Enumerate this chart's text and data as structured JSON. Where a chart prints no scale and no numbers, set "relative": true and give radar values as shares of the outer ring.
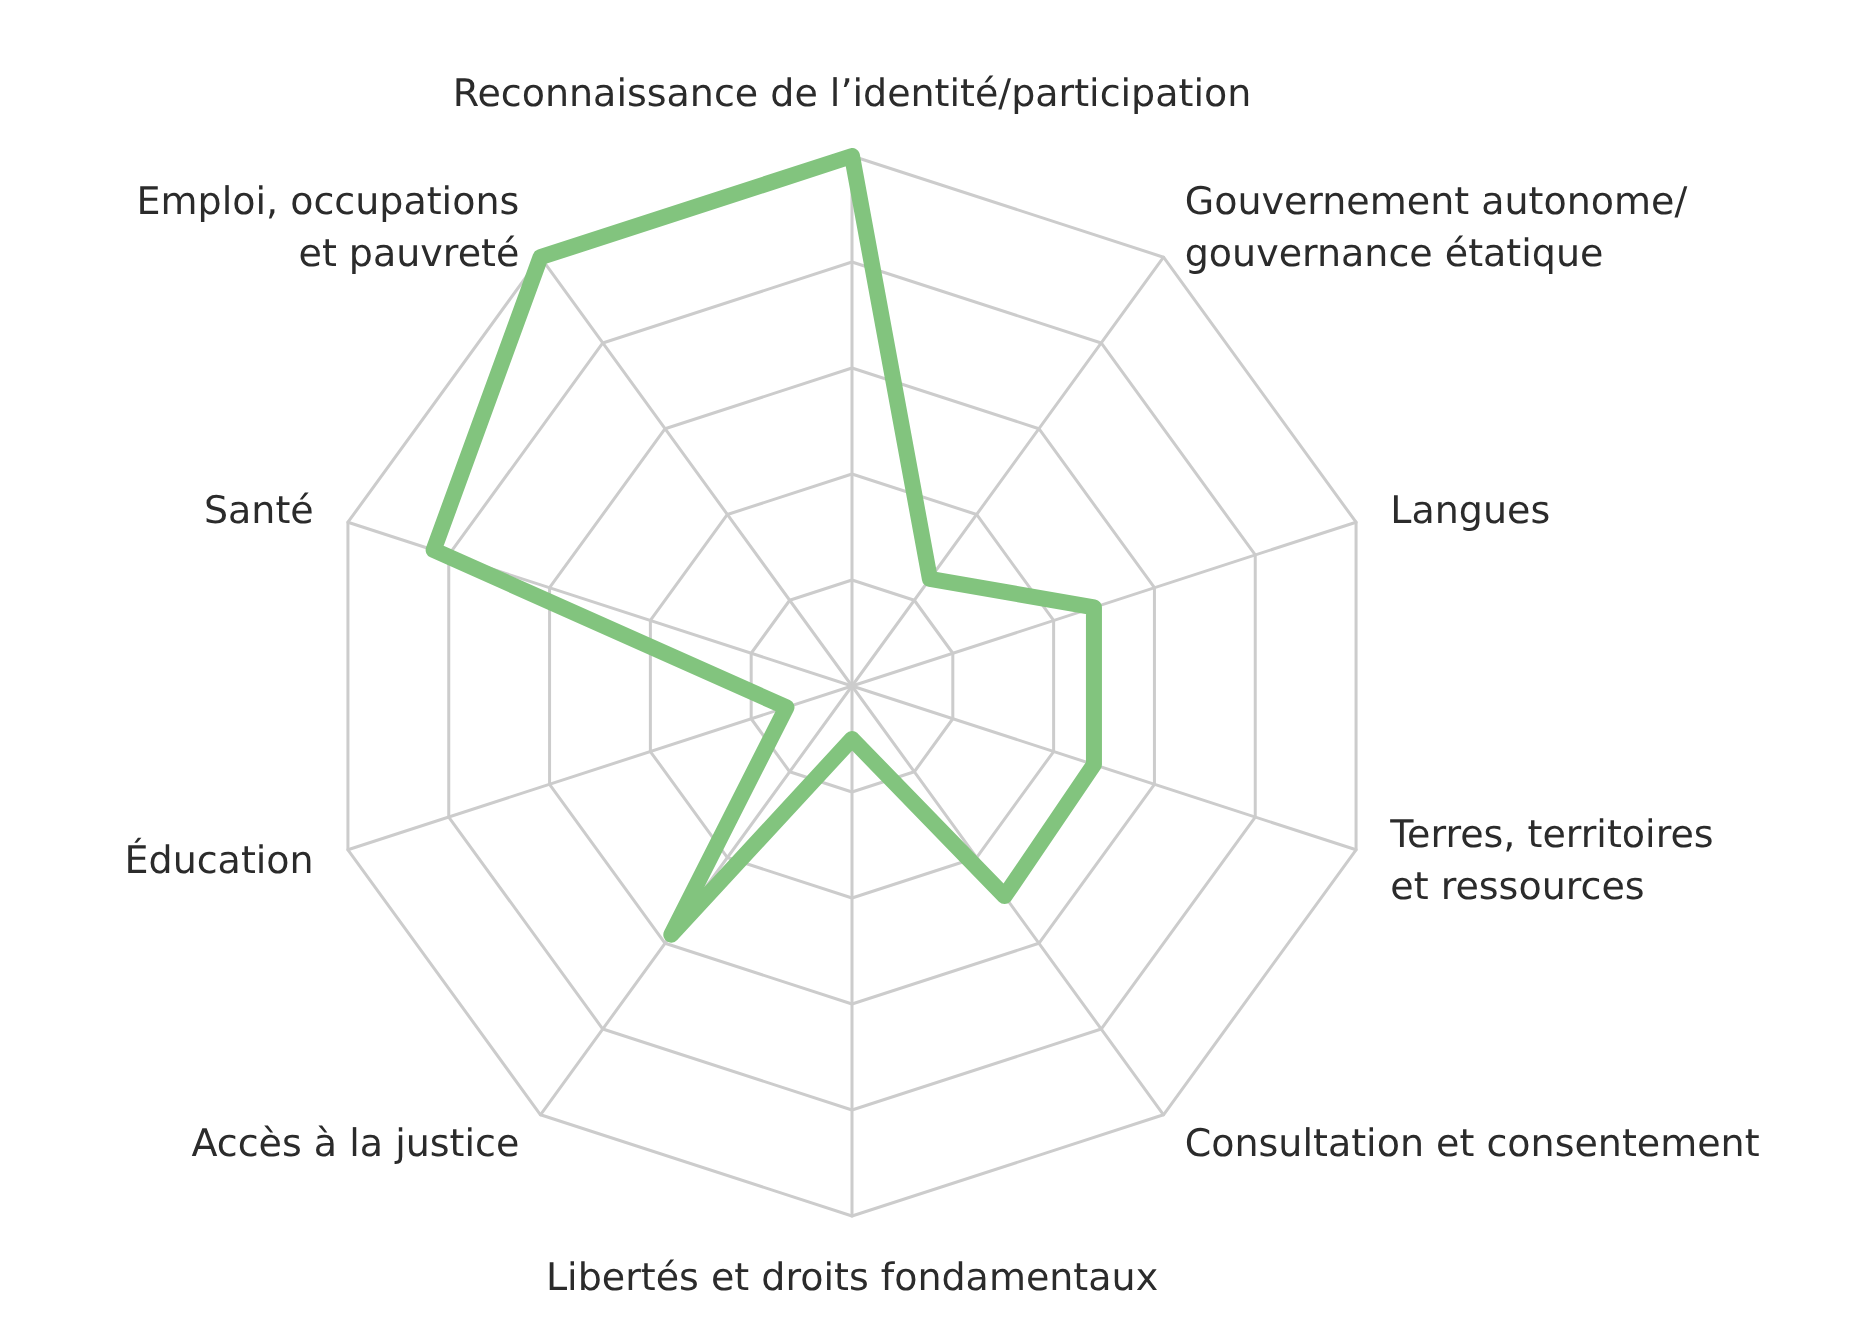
{
  "chart_data": {
    "type": "radar",
    "relative": true,
    "categories": [
      "Reconnaissance de l’identité/participation",
      "Gouvernement autonome/\ngouvernance étatique",
      "Langues",
      "Terres, territoires\net ressources",
      "Consultation et consentement",
      "Libertés et droits fondamentaux",
      "Accès à la justice",
      "Éducation",
      "Santé",
      "Emploi, occupations\net pauvreté"
    ],
    "series": [
      {
        "color": "#82c47e",
        "values": [
          1,
          0.25,
          0.48,
          0.48,
          0.49,
          0.1,
          0.58,
          0.13,
          0.83,
          1
        ]
      }
    ],
    "grid": true,
    "marker": "none",
    "line_style": "solid"
  }
}
